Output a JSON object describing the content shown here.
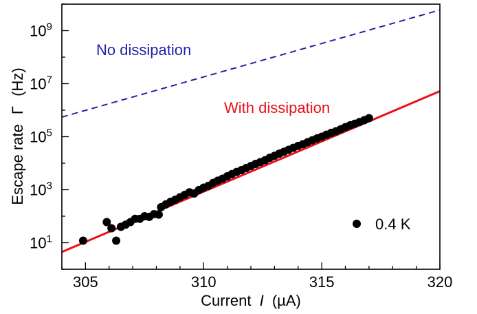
{
  "chart_data": {
    "type": "scatter",
    "xlabel": "Current",
    "xlabel_symbol": "I",
    "xlabel_unit": "(µA)",
    "ylabel": "Escape rate",
    "ylabel_symbol": "Γ",
    "ylabel_unit": "(Hz)",
    "xlim": [
      304,
      320
    ],
    "ylim": [
      1,
      10000000000
    ],
    "y_scale": "log",
    "x_ticks": [
      {
        "value": 305,
        "label": "305"
      },
      {
        "value": 310,
        "label": "310"
      },
      {
        "value": 315,
        "label": "315"
      },
      {
        "value": 320,
        "label": "320"
      }
    ],
    "y_ticks": [
      {
        "value": 10,
        "base": "10",
        "exp": "1"
      },
      {
        "value": 1000,
        "base": "10",
        "exp": "3"
      },
      {
        "value": 100000,
        "base": "10",
        "exp": "5"
      },
      {
        "value": 10000000,
        "base": "10",
        "exp": "7"
      },
      {
        "value": 1000000000,
        "base": "10",
        "exp": "9"
      }
    ],
    "grid": false,
    "legend_position": "bottom-right",
    "series": [
      {
        "name": "0.4 K",
        "style": "points",
        "color": "#000000",
        "x": [
          304.9,
          305.9,
          306.1,
          306.3,
          306.5,
          306.7,
          306.9,
          307.1,
          307.3,
          307.5,
          307.7,
          307.9,
          308.1,
          308.2,
          308.4,
          308.6,
          308.8,
          309.0,
          309.2,
          309.4,
          309.6,
          309.8,
          310.0,
          310.2,
          310.4,
          310.6,
          310.8,
          311.0,
          311.2,
          311.4,
          311.6,
          311.8,
          312.0,
          312.2,
          312.4,
          312.6,
          312.8,
          313.0,
          313.2,
          313.4,
          313.6,
          313.8,
          314.0,
          314.2,
          314.4,
          314.6,
          314.8,
          315.0,
          315.2,
          315.4,
          315.6,
          315.8,
          316.0,
          316.2,
          316.4,
          316.6,
          316.8,
          317.0
        ],
        "y": [
          12,
          60,
          35,
          12,
          40,
          48,
          60,
          80,
          80,
          100,
          95,
          120,
          115,
          220,
          280,
          350,
          420,
          520,
          640,
          800,
          720,
          980,
          1200,
          1400,
          1800,
          2200,
          2600,
          3200,
          3900,
          4700,
          5500,
          6600,
          7800,
          9400,
          11000,
          13000,
          16000,
          19000,
          23000,
          27000,
          32000,
          38000,
          45000,
          52000,
          62000,
          73000,
          86000,
          100000,
          120000,
          140000,
          160000,
          190000,
          230000,
          270000,
          310000,
          360000,
          420000,
          500000
        ]
      },
      {
        "name": "No dissipation",
        "style": "dashed-line",
        "color": "#2323a8",
        "x": [
          304,
          320
        ],
        "y": [
          550000,
          6000000000
        ]
      },
      {
        "name": "With dissipation",
        "style": "line",
        "color": "#e8101a",
        "x": [
          304,
          320
        ],
        "y": [
          4.5,
          5200000
        ]
      }
    ]
  }
}
